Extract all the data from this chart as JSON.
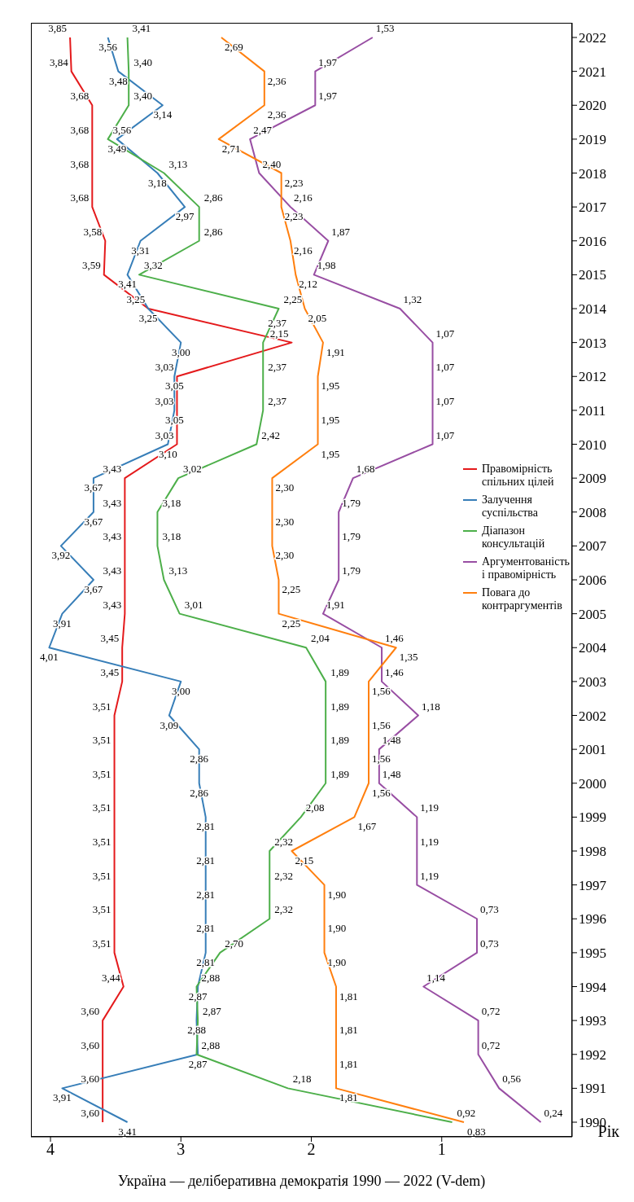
{
  "chart_data": {
    "type": "line",
    "orientation": "horizontal",
    "ylabel": "Рік",
    "xlabel": "Україна — делібeративна демократія 1990 — 2022 (V-dem)",
    "categories": [
      "2022",
      "2021",
      "2020",
      "2019",
      "2018",
      "2017",
      "2016",
      "2015",
      "2014",
      "2013",
      "2012",
      "2011",
      "2010",
      "2009",
      "2008",
      "2007",
      "2006",
      "2005",
      "2004",
      "2003",
      "2002",
      "2001",
      "2000",
      "1999",
      "1998",
      "1997",
      "1996",
      "1995",
      "1994",
      "1993",
      "1992",
      "1991",
      "1990"
    ],
    "xlim": [
      4.15,
      0
    ],
    "xticks": [
      1,
      2,
      3,
      4
    ],
    "legend": "right",
    "grid": false,
    "marker": "none",
    "line_style": "solid",
    "series": [
      {
        "name": "Правомірність спільних цілей",
        "color": "#e41a1c",
        "values": [
          3.85,
          3.84,
          3.68,
          3.68,
          3.68,
          3.68,
          3.58,
          3.59,
          3.25,
          2.15,
          3.03,
          3.03,
          3.03,
          3.43,
          3.43,
          3.43,
          3.43,
          3.43,
          3.45,
          3.45,
          3.51,
          3.51,
          3.51,
          3.51,
          3.51,
          3.51,
          3.51,
          3.51,
          3.44,
          3.6,
          3.6,
          3.6,
          3.6
        ],
        "value_labels": [
          "3,85",
          "3,84",
          "3,68",
          "3,68",
          "3,68",
          "3,68",
          "3,58",
          "3,59",
          "3,25",
          "2,15",
          "3,03",
          "3,03",
          "3,03",
          "3,43",
          "3,43",
          "3,43",
          "3,43",
          "3,43",
          "3,45",
          "3,45",
          "3,51",
          "3,51",
          "3,51",
          "3,51",
          "3,51",
          "3,51",
          "3,51",
          "3,51",
          "3,44",
          "3,60",
          "3,60",
          "3,60",
          "3,60"
        ]
      },
      {
        "name": "Залучення суспільства",
        "color": "#377eb8",
        "values": [
          3.56,
          3.48,
          3.14,
          3.49,
          3.18,
          2.97,
          3.31,
          3.41,
          3.25,
          3.0,
          3.05,
          3.05,
          3.1,
          3.67,
          3.67,
          3.92,
          3.67,
          3.91,
          4.01,
          3.0,
          3.09,
          2.86,
          2.86,
          2.81,
          2.81,
          2.81,
          2.81,
          2.81,
          2.87,
          2.88,
          2.87,
          3.91,
          3.41
        ],
        "value_labels": [
          "3,56",
          "3,48",
          "3,14",
          "3,49",
          "3,18",
          "2,97",
          "3,31",
          "3,41",
          "3,25",
          "3,00",
          "3,05",
          "3,05",
          "3,10",
          "3,67",
          "3,67",
          "3,92",
          "3,67",
          "3,91",
          "4,01",
          "3,00",
          "3,09",
          "2,86",
          "2,86",
          "2,81",
          "2,81",
          "2,81",
          "2,81",
          "2,81",
          "2,87",
          "2,88",
          "2,87",
          "3,91",
          "3,41"
        ]
      },
      {
        "name": "Діапазон консультацій",
        "color": "#4daf4a",
        "values": [
          3.41,
          3.4,
          3.4,
          3.56,
          3.13,
          2.86,
          2.86,
          3.32,
          2.25,
          2.37,
          2.37,
          2.37,
          2.42,
          3.02,
          3.18,
          3.18,
          3.13,
          3.01,
          2.04,
          1.89,
          1.89,
          1.89,
          1.89,
          2.08,
          2.32,
          2.32,
          2.32,
          2.7,
          2.88,
          2.87,
          2.88,
          2.18,
          0.92
        ],
        "value_labels": [
          "3,41",
          "3,40",
          "3,40",
          "3,56",
          "3,13",
          "2,86",
          "2,86",
          "3,32",
          "2,25",
          "2,37",
          "2,37",
          "2,37",
          "2,42",
          "3,02",
          "3,18",
          "3,18",
          "3,13",
          "3,01",
          "2,04",
          "1,89",
          "1,89",
          "1,89",
          "1,89",
          "2,08",
          "2,32",
          "2,32",
          "2,32",
          "2,70",
          "2,88",
          "2,87",
          "2,88",
          "2,18",
          "0,92"
        ]
      },
      {
        "name": "Аргументованість і правомірність",
        "color": "#984ea3",
        "values": [
          1.53,
          1.97,
          1.97,
          2.47,
          2.4,
          2.16,
          1.87,
          1.98,
          1.32,
          1.07,
          1.07,
          1.07,
          1.07,
          1.68,
          1.79,
          1.79,
          1.79,
          1.91,
          1.46,
          1.46,
          1.18,
          1.48,
          1.48,
          1.19,
          1.19,
          1.19,
          0.73,
          0.73,
          1.14,
          0.72,
          0.72,
          0.56,
          0.24
        ],
        "value_labels": [
          "1,53",
          "1,97",
          "1,97",
          "2,47",
          "2,40",
          "2,16",
          "1,87",
          "1,98",
          "1,32",
          "1,07",
          "1,07",
          "1,07",
          "1,07",
          "1,68",
          "1,79",
          "1,79",
          "1,79",
          "1,91",
          "1,46",
          "1,46",
          "1,18",
          "1,48",
          "1,48",
          "1,19",
          "1,19",
          "1,19",
          "0,73",
          "0,73",
          "1,14",
          "0,72",
          "0,72",
          "0,56",
          "0,24"
        ]
      },
      {
        "name": "Повага до контраргументів",
        "color": "#ff7f0e",
        "values": [
          2.69,
          2.36,
          2.36,
          2.71,
          2.23,
          2.23,
          2.16,
          2.12,
          2.05,
          1.91,
          1.95,
          1.95,
          1.95,
          2.3,
          2.3,
          2.3,
          2.25,
          2.25,
          1.35,
          1.56,
          1.56,
          1.56,
          1.56,
          1.67,
          2.15,
          1.9,
          1.9,
          1.9,
          1.81,
          1.81,
          1.81,
          1.81,
          0.83
        ],
        "value_labels": [
          "2,69",
          "2,36",
          "2,36",
          "2,71",
          "2,23",
          "2,23",
          "2,16",
          "2,12",
          "2,05",
          "1,91",
          "1,95",
          "1,95",
          "1,95",
          "2,30",
          "2,30",
          "2,30",
          "2,25",
          "2,25",
          "1,35",
          "1,56",
          "1,56",
          "1,56",
          "1,56",
          "1,67",
          "2,15",
          "1,90",
          "1,90",
          "1,90",
          "1,81",
          "1,81",
          "1,81",
          "1,81",
          "0,83"
        ]
      }
    ]
  }
}
